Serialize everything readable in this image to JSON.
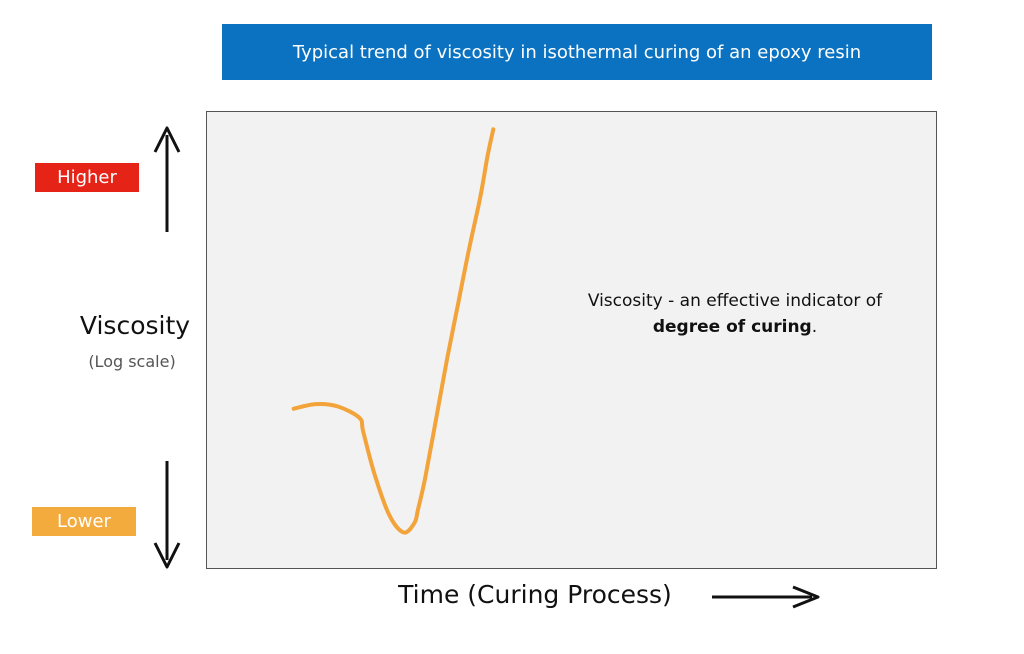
{
  "colors": {
    "banner": "#0a72c0",
    "plot_background": "#f2f2f2",
    "curve": "#f2a33a",
    "higher_tag": "#e52317",
    "lower_tag": "#f4ab3e",
    "arrow": "#111111"
  },
  "chart_data": {
    "type": "line",
    "title": "Typical trend of viscosity in isothermal curing of an epoxy resin",
    "xlabel": "Time (Curing Process)",
    "ylabel": "Viscosity",
    "ylabel_unit": "(Log scale)",
    "y_high_label": "Higher",
    "y_low_label": "Lower",
    "annotation": {
      "text": "Viscosity - an effective indicator of",
      "strong": "degree of curing",
      "suffix": "."
    },
    "xlim": [
      0,
      1
    ],
    "ylim": [
      0,
      1
    ],
    "grid": false,
    "series": [
      {
        "name": "Viscosity",
        "x": [
          0.12,
          0.15,
          0.18,
          0.21,
          0.215,
          0.23,
          0.25,
          0.27,
          0.285,
          0.29,
          0.3,
          0.315,
          0.33,
          0.345,
          0.36,
          0.375,
          0.385,
          0.393
        ],
        "y": [
          0.35,
          0.36,
          0.355,
          0.33,
          0.3,
          0.21,
          0.12,
          0.08,
          0.1,
          0.13,
          0.2,
          0.33,
          0.46,
          0.58,
          0.7,
          0.81,
          0.9,
          0.96
        ]
      }
    ]
  },
  "icons": {
    "up_arrow": "arrow-up-icon",
    "down_arrow": "arrow-down-icon",
    "right_arrow": "arrow-right-icon"
  }
}
